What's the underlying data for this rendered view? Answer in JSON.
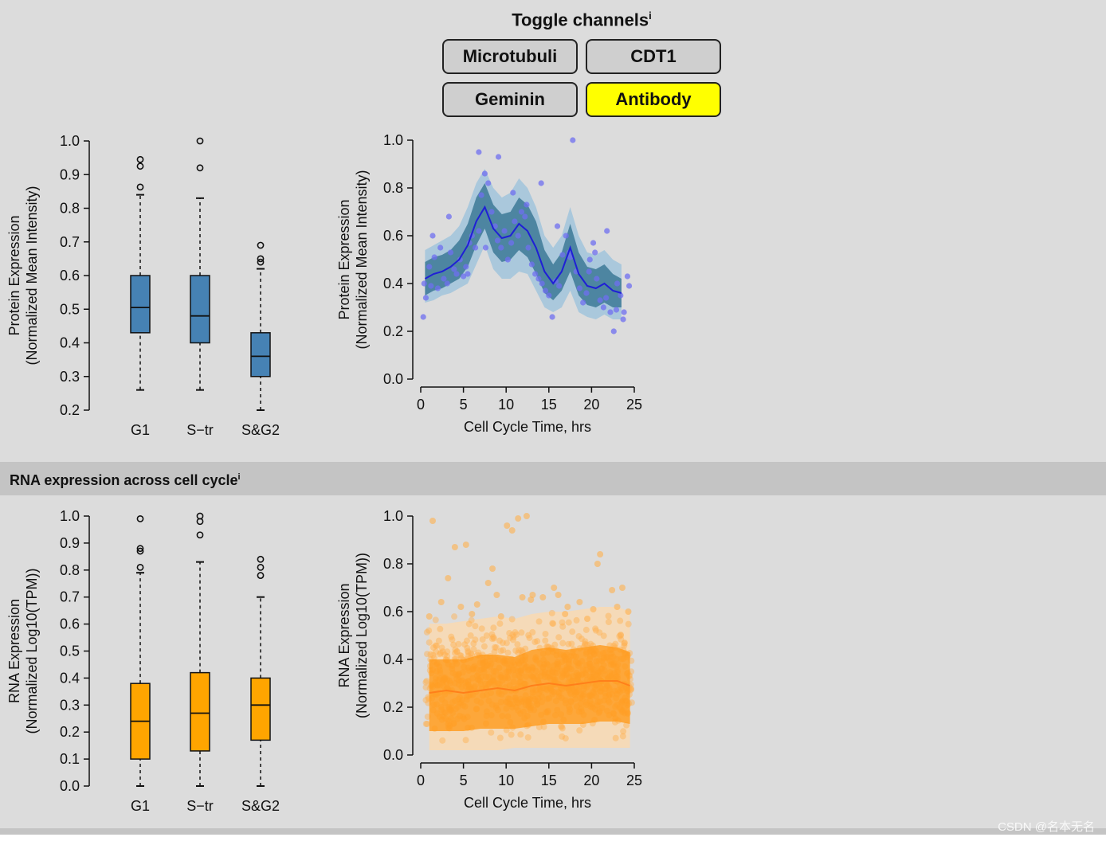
{
  "toggle": {
    "title": "Toggle channels",
    "info_mark": "i",
    "buttons": [
      {
        "label": "Microtubuli",
        "active": false
      },
      {
        "label": "CDT1",
        "active": false
      },
      {
        "label": "Geminin",
        "active": false
      },
      {
        "label": "Antibody",
        "active": true
      }
    ]
  },
  "rna_section": {
    "title": "RNA expression across cell cycle",
    "info_mark": "i"
  },
  "watermark": "CSDN @名本无名",
  "colors": {
    "protein_box": "#4682b4",
    "protein_line": "#1f1fd6",
    "protein_point": "#6f6ff0",
    "protein_band": "#2e6f8e",
    "protein_band_outer": "#9ec3dc",
    "rna_box": "#ffa500",
    "rna_line": "#ff7f1a",
    "rna_point": "#ffb04d",
    "highlight": "#ffff00"
  },
  "chart_data": [
    {
      "id": "protein-box",
      "type": "box",
      "ylabel_line1": "Protein Expression",
      "ylabel_line2": "(Normalized Mean Intensity)",
      "ylim": [
        0.2,
        1.0
      ],
      "yticks": [
        "0.2",
        "0.3",
        "0.4",
        "0.5",
        "0.6",
        "0.7",
        "0.8",
        "0.9",
        "1.0"
      ],
      "categories": [
        "G1",
        "S−tr",
        "S&G2"
      ],
      "boxes": [
        {
          "whisker_low": 0.26,
          "q1": 0.43,
          "median": 0.505,
          "q3": 0.6,
          "whisker_high": 0.84,
          "outliers": [
            0.863,
            0.925,
            0.945
          ]
        },
        {
          "whisker_low": 0.26,
          "q1": 0.4,
          "median": 0.48,
          "q3": 0.6,
          "whisker_high": 0.83,
          "outliers": [
            0.92,
            1.0
          ]
        },
        {
          "whisker_low": 0.2,
          "q1": 0.3,
          "median": 0.36,
          "q3": 0.43,
          "whisker_high": 0.62,
          "outliers": [
            0.64,
            0.65,
            0.69
          ]
        }
      ]
    },
    {
      "id": "protein-scatter",
      "type": "scatter",
      "ylabel_line1": "Protein Expression",
      "ylabel_line2": "(Normalized Mean Intensity)",
      "xlabel": "Cell Cycle Time, hrs",
      "xlim": [
        0,
        25
      ],
      "ylim": [
        0,
        1.0
      ],
      "xticks": [
        "0",
        "5",
        "10",
        "15",
        "20",
        "25"
      ],
      "yticks": [
        "0.0",
        "0.2",
        "0.4",
        "0.6",
        "0.8",
        "1.0"
      ],
      "trend_x": [
        0.5,
        1.5,
        2.5,
        3.5,
        4.5,
        5.5,
        6.5,
        7.5,
        8.5,
        9.5,
        10.5,
        11.5,
        12.5,
        13.5,
        14.5,
        15.5,
        16.5,
        17.5,
        18.5,
        19.5,
        20.5,
        21.5,
        22.5,
        23.5
      ],
      "trend_y": [
        0.42,
        0.44,
        0.45,
        0.47,
        0.5,
        0.56,
        0.66,
        0.72,
        0.63,
        0.59,
        0.6,
        0.65,
        0.62,
        0.55,
        0.45,
        0.4,
        0.45,
        0.55,
        0.44,
        0.39,
        0.38,
        0.4,
        0.37,
        0.36
      ],
      "band_low": [
        0.35,
        0.37,
        0.38,
        0.4,
        0.42,
        0.47,
        0.56,
        0.63,
        0.53,
        0.49,
        0.5,
        0.54,
        0.51,
        0.44,
        0.36,
        0.33,
        0.37,
        0.45,
        0.35,
        0.31,
        0.3,
        0.32,
        0.3,
        0.3
      ],
      "band_high": [
        0.49,
        0.51,
        0.52,
        0.54,
        0.58,
        0.65,
        0.76,
        0.82,
        0.73,
        0.69,
        0.7,
        0.76,
        0.73,
        0.66,
        0.54,
        0.48,
        0.53,
        0.65,
        0.53,
        0.47,
        0.46,
        0.48,
        0.44,
        0.42
      ],
      "points_x": [
        0.3,
        0.6,
        1.0,
        1.2,
        1.6,
        2.0,
        2.3,
        2.7,
        3.1,
        3.5,
        3.9,
        4.2,
        4.6,
        5.0,
        5.3,
        5.7,
        6.0,
        6.4,
        6.8,
        7.1,
        7.5,
        7.9,
        8.3,
        8.7,
        9.0,
        9.4,
        9.8,
        10.2,
        10.6,
        11.0,
        11.4,
        11.8,
        12.2,
        12.6,
        13.0,
        13.4,
        13.8,
        14.2,
        14.6,
        15.0,
        15.4,
        15.8,
        16.2,
        16.6,
        17.0,
        17.4,
        17.8,
        18.2,
        18.6,
        19.0,
        19.4,
        19.8,
        20.2,
        20.6,
        21.0,
        21.4,
        21.8,
        22.2,
        22.6,
        23.0,
        23.4,
        23.8,
        24.2,
        0.4,
        1.4,
        3.3,
        5.5,
        6.8,
        7.6,
        9.1,
        10.8,
        12.4,
        14.1,
        16.0,
        17.5,
        19.7,
        20.4,
        21.7,
        22.9,
        23.7,
        24.4
      ],
      "points_y": [
        0.26,
        0.34,
        0.47,
        0.39,
        0.51,
        0.38,
        0.55,
        0.42,
        0.4,
        0.53,
        0.46,
        0.44,
        0.5,
        0.43,
        0.47,
        0.57,
        0.6,
        0.55,
        0.62,
        0.77,
        0.86,
        0.82,
        0.7,
        0.64,
        0.58,
        0.55,
        0.62,
        0.5,
        0.57,
        0.66,
        0.6,
        0.7,
        0.68,
        0.55,
        0.48,
        0.44,
        0.42,
        0.4,
        0.37,
        0.35,
        0.26,
        0.41,
        0.39,
        0.52,
        0.6,
        0.53,
        1.0,
        0.45,
        0.38,
        0.32,
        0.36,
        0.5,
        0.57,
        0.42,
        0.33,
        0.3,
        0.62,
        0.28,
        0.2,
        0.4,
        0.35,
        0.28,
        0.43,
        0.4,
        0.6,
        0.68,
        0.44,
        0.95,
        0.55,
        0.93,
        0.78,
        0.73,
        0.82,
        0.64,
        0.51,
        0.45,
        0.53,
        0.34,
        0.29,
        0.25,
        0.39
      ],
      "outer_low": [
        0.32,
        0.33,
        0.35,
        0.36,
        0.38,
        0.4,
        0.48,
        0.56,
        0.46,
        0.42,
        0.42,
        0.45,
        0.44,
        0.37,
        0.3,
        0.28,
        0.3,
        0.37,
        0.28,
        0.26,
        0.25,
        0.27,
        0.25,
        0.25
      ],
      "outer_high": [
        0.54,
        0.56,
        0.58,
        0.6,
        0.64,
        0.72,
        0.82,
        0.88,
        0.8,
        0.76,
        0.78,
        0.84,
        0.8,
        0.72,
        0.6,
        0.55,
        0.6,
        0.72,
        0.6,
        0.53,
        0.52,
        0.54,
        0.5,
        0.48
      ]
    },
    {
      "id": "rna-box",
      "type": "box",
      "ylabel_line1": "RNA Expression",
      "ylabel_line2": "(Normalized Log10(TPM))",
      "ylim": [
        0.0,
        1.0
      ],
      "yticks": [
        "0.0",
        "0.1",
        "0.2",
        "0.3",
        "0.4",
        "0.5",
        "0.6",
        "0.7",
        "0.8",
        "0.9",
        "1.0"
      ],
      "categories": [
        "G1",
        "S−tr",
        "S&G2"
      ],
      "boxes": [
        {
          "whisker_low": 0.0,
          "q1": 0.1,
          "median": 0.24,
          "q3": 0.38,
          "whisker_high": 0.79,
          "outliers": [
            0.81,
            0.87,
            0.88,
            0.99
          ]
        },
        {
          "whisker_low": 0.0,
          "q1": 0.13,
          "median": 0.27,
          "q3": 0.42,
          "whisker_high": 0.83,
          "outliers": [
            0.93,
            0.98,
            1.0
          ]
        },
        {
          "whisker_low": 0.0,
          "q1": 0.17,
          "median": 0.3,
          "q3": 0.4,
          "whisker_high": 0.7,
          "outliers": [
            0.78,
            0.81,
            0.84
          ]
        }
      ]
    },
    {
      "id": "rna-scatter",
      "type": "scatter",
      "ylabel_line1": "RNA Expression",
      "ylabel_line2": "(Normalized Log10(TPM))",
      "xlabel": "Cell Cycle Time, hrs",
      "xlim": [
        0,
        25
      ],
      "ylim": [
        0,
        1.0
      ],
      "xticks": [
        "0",
        "5",
        "10",
        "15",
        "20",
        "25"
      ],
      "yticks": [
        "0.0",
        "0.2",
        "0.4",
        "0.6",
        "0.8",
        "1.0"
      ],
      "trend_x": [
        1,
        3,
        5,
        7,
        9,
        11,
        13,
        15,
        17,
        19,
        21,
        23,
        24.5
      ],
      "trend_y": [
        0.26,
        0.27,
        0.26,
        0.27,
        0.28,
        0.27,
        0.29,
        0.3,
        0.29,
        0.3,
        0.31,
        0.31,
        0.29
      ],
      "band_low": [
        0.1,
        0.1,
        0.1,
        0.11,
        0.11,
        0.11,
        0.12,
        0.13,
        0.13,
        0.13,
        0.14,
        0.14,
        0.13
      ],
      "band_high": [
        0.4,
        0.4,
        0.4,
        0.42,
        0.42,
        0.41,
        0.44,
        0.45,
        0.44,
        0.45,
        0.46,
        0.45,
        0.43
      ],
      "outer_low": [
        0.02,
        0.02,
        0.02,
        0.02,
        0.02,
        0.03,
        0.03,
        0.03,
        0.03,
        0.03,
        0.03,
        0.03,
        0.03
      ],
      "outer_high": [
        0.55,
        0.55,
        0.56,
        0.57,
        0.58,
        0.57,
        0.59,
        0.6,
        0.6,
        0.61,
        0.62,
        0.62,
        0.6
      ],
      "points_x": [
        1.4,
        4.0,
        5.3,
        6.6,
        8.4,
        10.1,
        10.7,
        11.4,
        12.4,
        13.1,
        16.1,
        18.6,
        20.7,
        21.0,
        3.2,
        7.9,
        9.4,
        14.3,
        17.2,
        22.4,
        23.6,
        2.4,
        6.0,
        11.9,
        15.6,
        19.5,
        24.3,
        1.0,
        4.7,
        8.9,
        12.9,
        16.9,
        20.2,
        23.0
      ],
      "points_y": [
        0.98,
        0.87,
        0.88,
        0.63,
        0.78,
        0.96,
        0.94,
        0.99,
        1.0,
        0.67,
        0.67,
        0.64,
        0.8,
        0.84,
        0.74,
        0.72,
        0.58,
        0.66,
        0.62,
        0.69,
        0.7,
        0.64,
        0.59,
        0.66,
        0.7,
        0.57,
        0.6,
        0.58,
        0.62,
        0.67,
        0.65,
        0.59,
        0.61,
        0.62
      ]
    }
  ]
}
